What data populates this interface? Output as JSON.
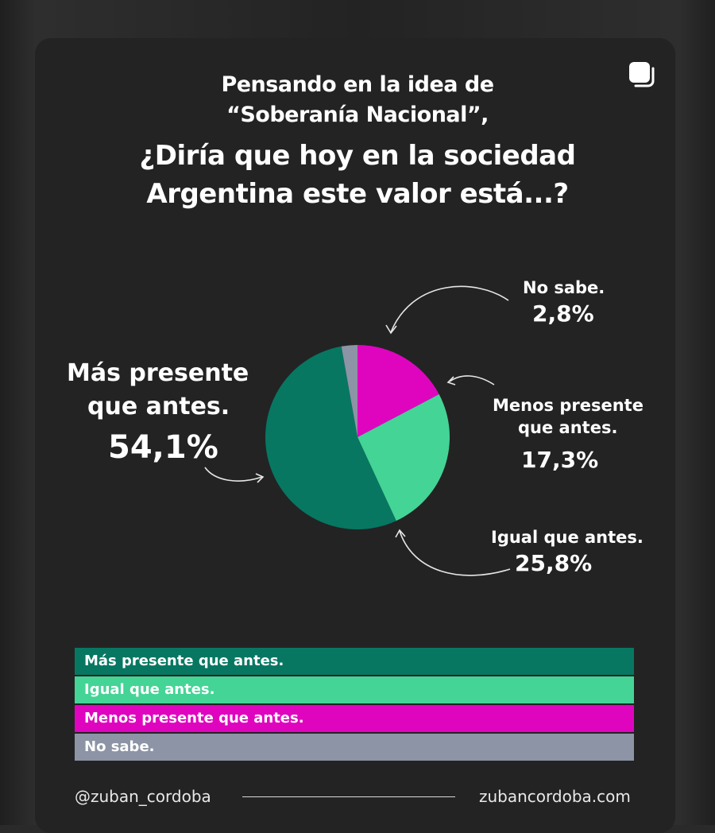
{
  "title": {
    "line1": "Pensando en la idea de",
    "line2": "“Soberanía Nacional”,",
    "line3": "¿Diría que hoy en la sociedad",
    "line4": "Argentina este valor está...?"
  },
  "chart_data": {
    "type": "pie",
    "slices": [
      {
        "label": "Más presente que antes.",
        "value": 54.1,
        "value_label": "54,1%",
        "color": "#077762"
      },
      {
        "label": "Igual que antes.",
        "value": 25.8,
        "value_label": "25,8%",
        "color": "#44d496"
      },
      {
        "label": "Menos presente que antes.",
        "value": 17.3,
        "value_label": "17,3%",
        "color": "#df05bf"
      },
      {
        "label": "No sabe.",
        "value": 2.8,
        "value_label": "2,8%",
        "color": "#8c94a6"
      }
    ]
  },
  "labels": {
    "mas_l1": "Más presente",
    "mas_l2": "que antes.",
    "no_sabe": "No sabe.",
    "menos_l1": "Menos presente",
    "menos_l2": "que antes.",
    "igual": "Igual que antes."
  },
  "legend": [
    {
      "label": "Más presente que antes.",
      "color": "#077762"
    },
    {
      "label": "Igual que antes.",
      "color": "#44d496"
    },
    {
      "label": "Menos presente que antes.",
      "color": "#df05bf"
    },
    {
      "label": "No sabe.",
      "color": "#8c94a6"
    }
  ],
  "footer": {
    "handle": "@zuban_cordoba",
    "website": "zubancordoba.com"
  },
  "icons": {
    "corner": "multiple-posts-icon"
  }
}
